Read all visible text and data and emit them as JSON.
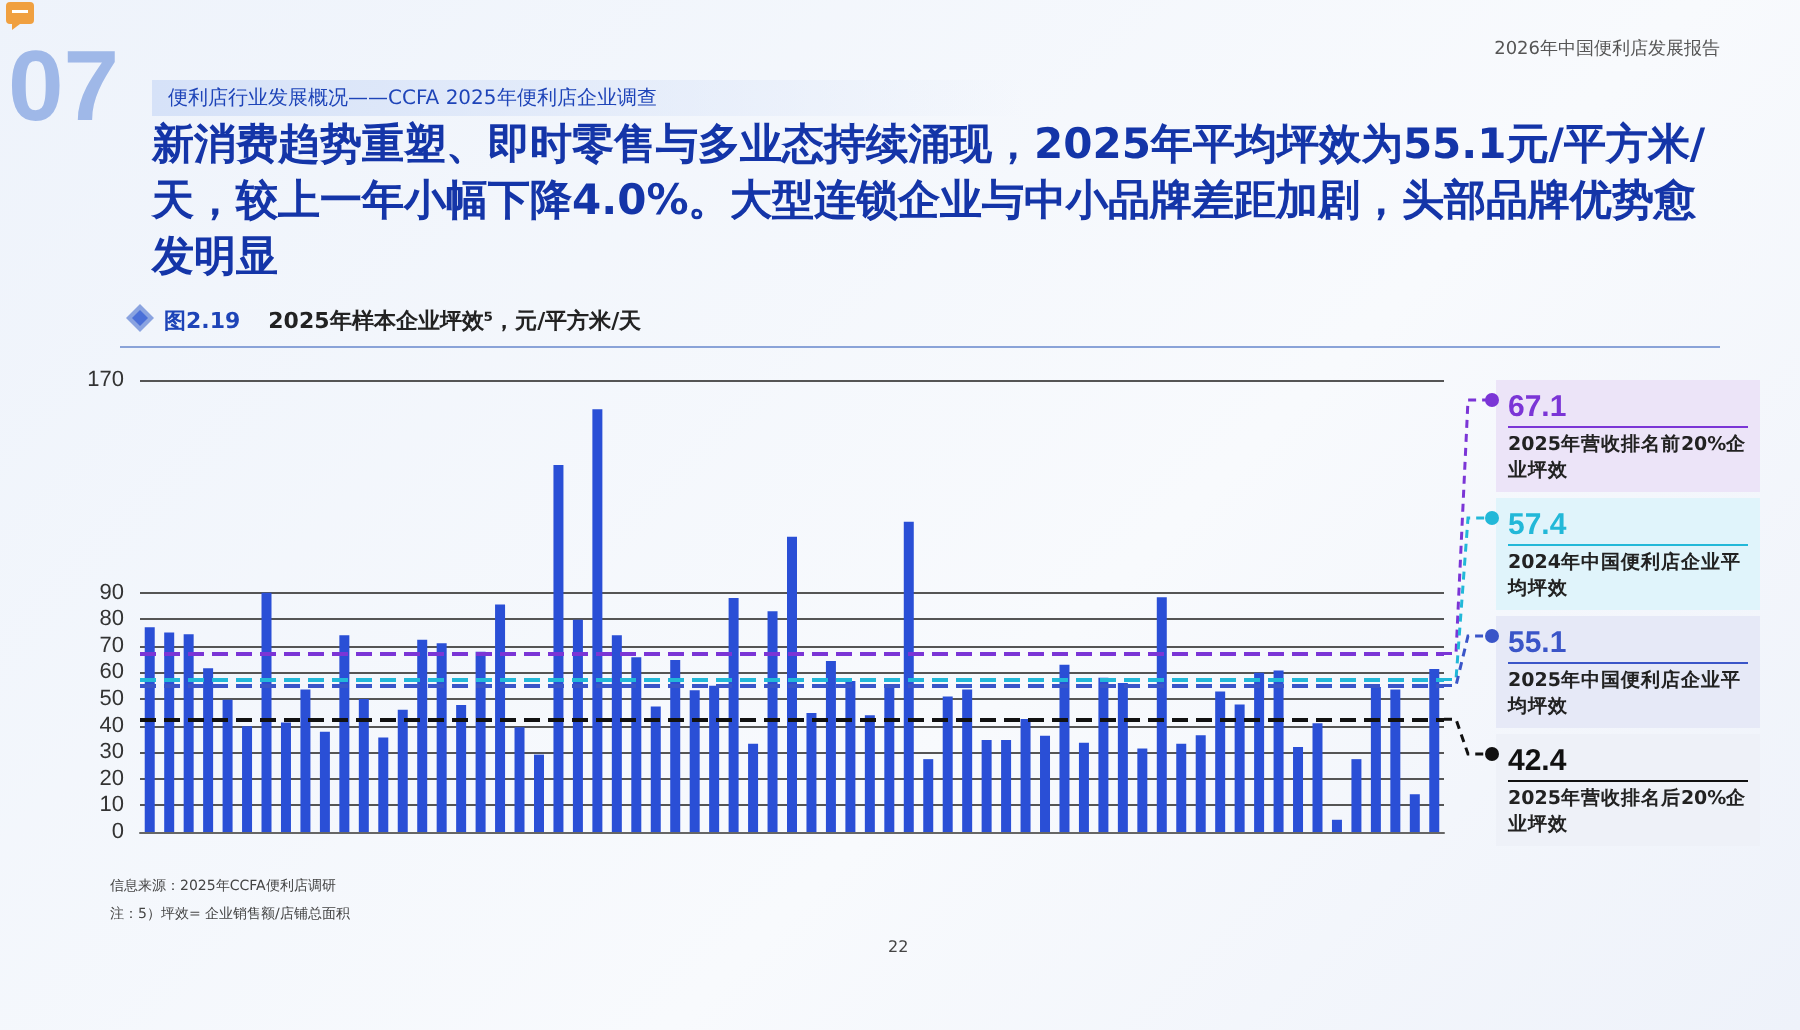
{
  "chart_data": {
    "type": "bar",
    "title": "新消费趋势重塑、即时零售与多业态持续涌现，2025年平均坪效为55.1元/平方米/天，较上一年小幅下降4.0%。大型连锁企业与中小品牌差距加剧，头部品牌优势愈发明显",
    "subtitle": "图2.19 2025年样本企业坪效⁵，元/平方米/天",
    "annotations": [
      "2026年中国便利店发展报告",
      "便利店行业发展概况——CCFA 2025年便利店企业调查",
      "07",
      "信息来源：2025年CCFA便利店调研",
      "注：5）坪效= 企业销售额/店铺总面积",
      "22"
    ],
    "categories": [
      null,
      null,
      null,
      null,
      null,
      null,
      null,
      null,
      null,
      null,
      null,
      null,
      null,
      null,
      null,
      null,
      null,
      null,
      null,
      null,
      null,
      null,
      null,
      null,
      null,
      null,
      null,
      null,
      null,
      null,
      null,
      null,
      null,
      null,
      null,
      null,
      null,
      null,
      null,
      null,
      null,
      null,
      null,
      null,
      null,
      null,
      null,
      null,
      null,
      null,
      null,
      null,
      null,
      null,
      null,
      null,
      null,
      null,
      null,
      null,
      null,
      null,
      null,
      null,
      null,
      null,
      null
    ],
    "color": "#2a4fd6",
    "values": [
      77,
      75,
      74.4,
      61.6,
      49.7,
      39.8,
      90,
      41.2,
      53.6,
      37.7,
      74,
      50,
      35.5,
      46,
      72.3,
      71,
      47.8,
      67.8,
      85.6,
      39.4,
      29.1,
      138,
      79.8,
      159,
      74,
      65.7,
      47.2,
      64.7,
      53.3,
      55,
      88,
      33.2,
      83,
      111,
      44.8,
      64.3,
      56.8,
      43.9,
      55,
      116.7,
      27.4,
      51,
      53.6,
      34.6,
      34.6,
      42.5,
      36.2,
      62.9,
      33.6,
      58,
      56,
      31.4,
      88.3,
      33.2,
      36.4,
      52.8,
      48,
      59.9,
      60.7,
      32,
      40.9,
      4.6,
      27.4,
      54.5,
      53.6,
      14.2,
      61.3
    ],
    "ylim": [
      0,
      170
    ],
    "yticks": [
      0,
      10,
      20,
      30,
      40,
      50,
      60,
      70,
      80,
      90,
      170
    ],
    "grid": "y",
    "tick_labels": "y",
    "legend": "right",
    "line_style": "dashed",
    "ref_lines": [
      {
        "axis": "y",
        "value": 67.1,
        "label": "67.1 2025年营收排名前20%企业坪效",
        "color": "#7b35d6"
      },
      {
        "axis": "y",
        "value": 57.4,
        "label": "57.4 2024年中国便利店企业平均坪效",
        "color": "#22b8d8"
      },
      {
        "axis": "y",
        "value": 55.1,
        "label": "55.1 2025年中国便利店企业平均坪效",
        "color": "#3a55c8"
      },
      {
        "axis": "y",
        "value": 42.4,
        "label": "42.4 2025年营收排名后20%企业坪效",
        "color": "#111111"
      }
    ]
  }
}
